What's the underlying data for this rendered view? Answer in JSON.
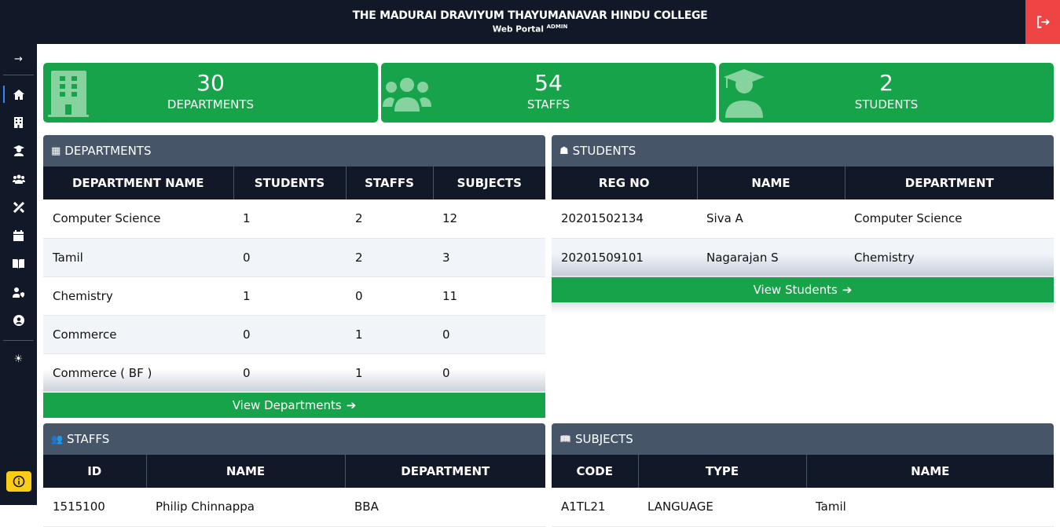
{
  "header": {
    "title": "THE MADURAI DRAVIYUM THAYUMANAVAR HINDU COLLEGE",
    "subtitle": "Web Portal",
    "badge": "ADMIN"
  },
  "colors": {
    "header": "#111827",
    "accent": "#16a34a",
    "panel_header": "#475569",
    "logout": "#ef4444",
    "info": "#facc15"
  },
  "sidebar": {
    "items": [
      "arrow-right-icon",
      "home-icon",
      "building-icon",
      "graduate-icon",
      "users-icon",
      "tools-icon",
      "calendar-icon",
      "book-icon",
      "user-shield-icon",
      "user-circle-icon",
      "sun-icon"
    ]
  },
  "cards": [
    {
      "value": "30",
      "label": "DEPARTMENTS",
      "icon": "building-icon"
    },
    {
      "value": "54",
      "label": "STAFFS",
      "icon": "users-icon"
    },
    {
      "value": "2",
      "label": "STUDENTS",
      "icon": "graduate-icon"
    }
  ],
  "departments": {
    "title": "DEPARTMENTS",
    "columns": [
      "DEPARTMENT NAME",
      "STUDENTS",
      "STAFFS",
      "SUBJECTS"
    ],
    "rows": [
      [
        "Computer Science",
        "1",
        "2",
        "12"
      ],
      [
        "Tamil",
        "0",
        "2",
        "3"
      ],
      [
        "Chemistry",
        "1",
        "0",
        "11"
      ],
      [
        "Commerce",
        "0",
        "1",
        "0"
      ],
      [
        "Commerce ( BF )",
        "0",
        "1",
        "0"
      ]
    ],
    "button": "View Departments"
  },
  "students": {
    "title": "STUDENTS",
    "columns": [
      "REG NO",
      "NAME",
      "DEPARTMENT"
    ],
    "rows": [
      [
        "20201502134",
        "Siva A",
        "Computer Science"
      ],
      [
        "20201509101",
        "Nagarajan S",
        "Chemistry"
      ]
    ],
    "button": "View Students"
  },
  "staffs": {
    "title": "STAFFS",
    "columns": [
      "ID",
      "NAME",
      "DEPARTMENT"
    ],
    "rows": [
      [
        "1515100",
        "Philip Chinnappa",
        "BBA"
      ]
    ]
  },
  "subjects": {
    "title": "SUBJECTS",
    "columns": [
      "CODE",
      "TYPE",
      "NAME"
    ],
    "rows": [
      [
        "A1TL21",
        "LANGUAGE",
        "Tamil"
      ]
    ]
  }
}
